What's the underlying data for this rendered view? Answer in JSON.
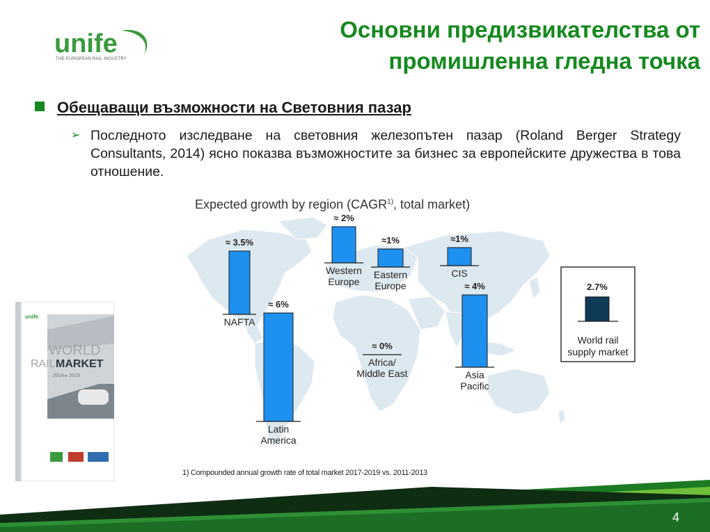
{
  "logo": {
    "word": "unife",
    "tagline": "THE EUROPEAN RAIL INDUSTRY"
  },
  "title": {
    "line1": "Основни предизвикателства от",
    "line2": "промишленна гледна точка"
  },
  "bullet1": "Обещаващи възможности на Световния пазар",
  "bullet2": "Последното изследване на световния железопътен пазар (Roland Berger Strategy Consultants, 2014) ясно показва възможностите за бизнес за европейските дружества в това отношение.",
  "chart_title": {
    "main": "Expected growth by region (CAGR",
    "sup": "1)",
    "end": ", total market)"
  },
  "footnote": "1) Compounded annual growth rate of total market 2017-2019 vs. 2011-2013",
  "page_number": "4",
  "book": {
    "word": "WORLD",
    "rail": "RAIL",
    "market": "MARKET",
    "years": "2014 ▸ 2019",
    "brand": "unife"
  },
  "colors": {
    "accent_green": "#16891f",
    "bar_blue": "#1e90f0",
    "supply_bar": "#0d3b55",
    "map": "#dde9f0"
  },
  "chart_data": {
    "type": "bar",
    "title": "Expected growth by region (CAGR1), total market)",
    "unit": "%",
    "regions": [
      {
        "name": [
          "NAFTA"
        ],
        "label": "≈ 3.5%",
        "value": 3.5
      },
      {
        "name": [
          "Latin",
          "America"
        ],
        "label": "≈ 6%",
        "value": 6
      },
      {
        "name": [
          "Western",
          "Europe"
        ],
        "label": "≈ 2%",
        "value": 2
      },
      {
        "name": [
          "Eastern",
          "Europe"
        ],
        "label": "≈1%",
        "value": 1
      },
      {
        "name": [
          "CIS"
        ],
        "label": "≈1%",
        "value": 1
      },
      {
        "name": [
          "Africa/",
          "Middle East"
        ],
        "label": "≈ 0%",
        "value": 0
      },
      {
        "name": [
          "Asia",
          "Pacific"
        ],
        "label": "≈ 4%",
        "value": 4
      }
    ],
    "supply": {
      "name": [
        "World rail",
        "supply market"
      ],
      "label": "2.7%",
      "value": 2.7
    }
  }
}
